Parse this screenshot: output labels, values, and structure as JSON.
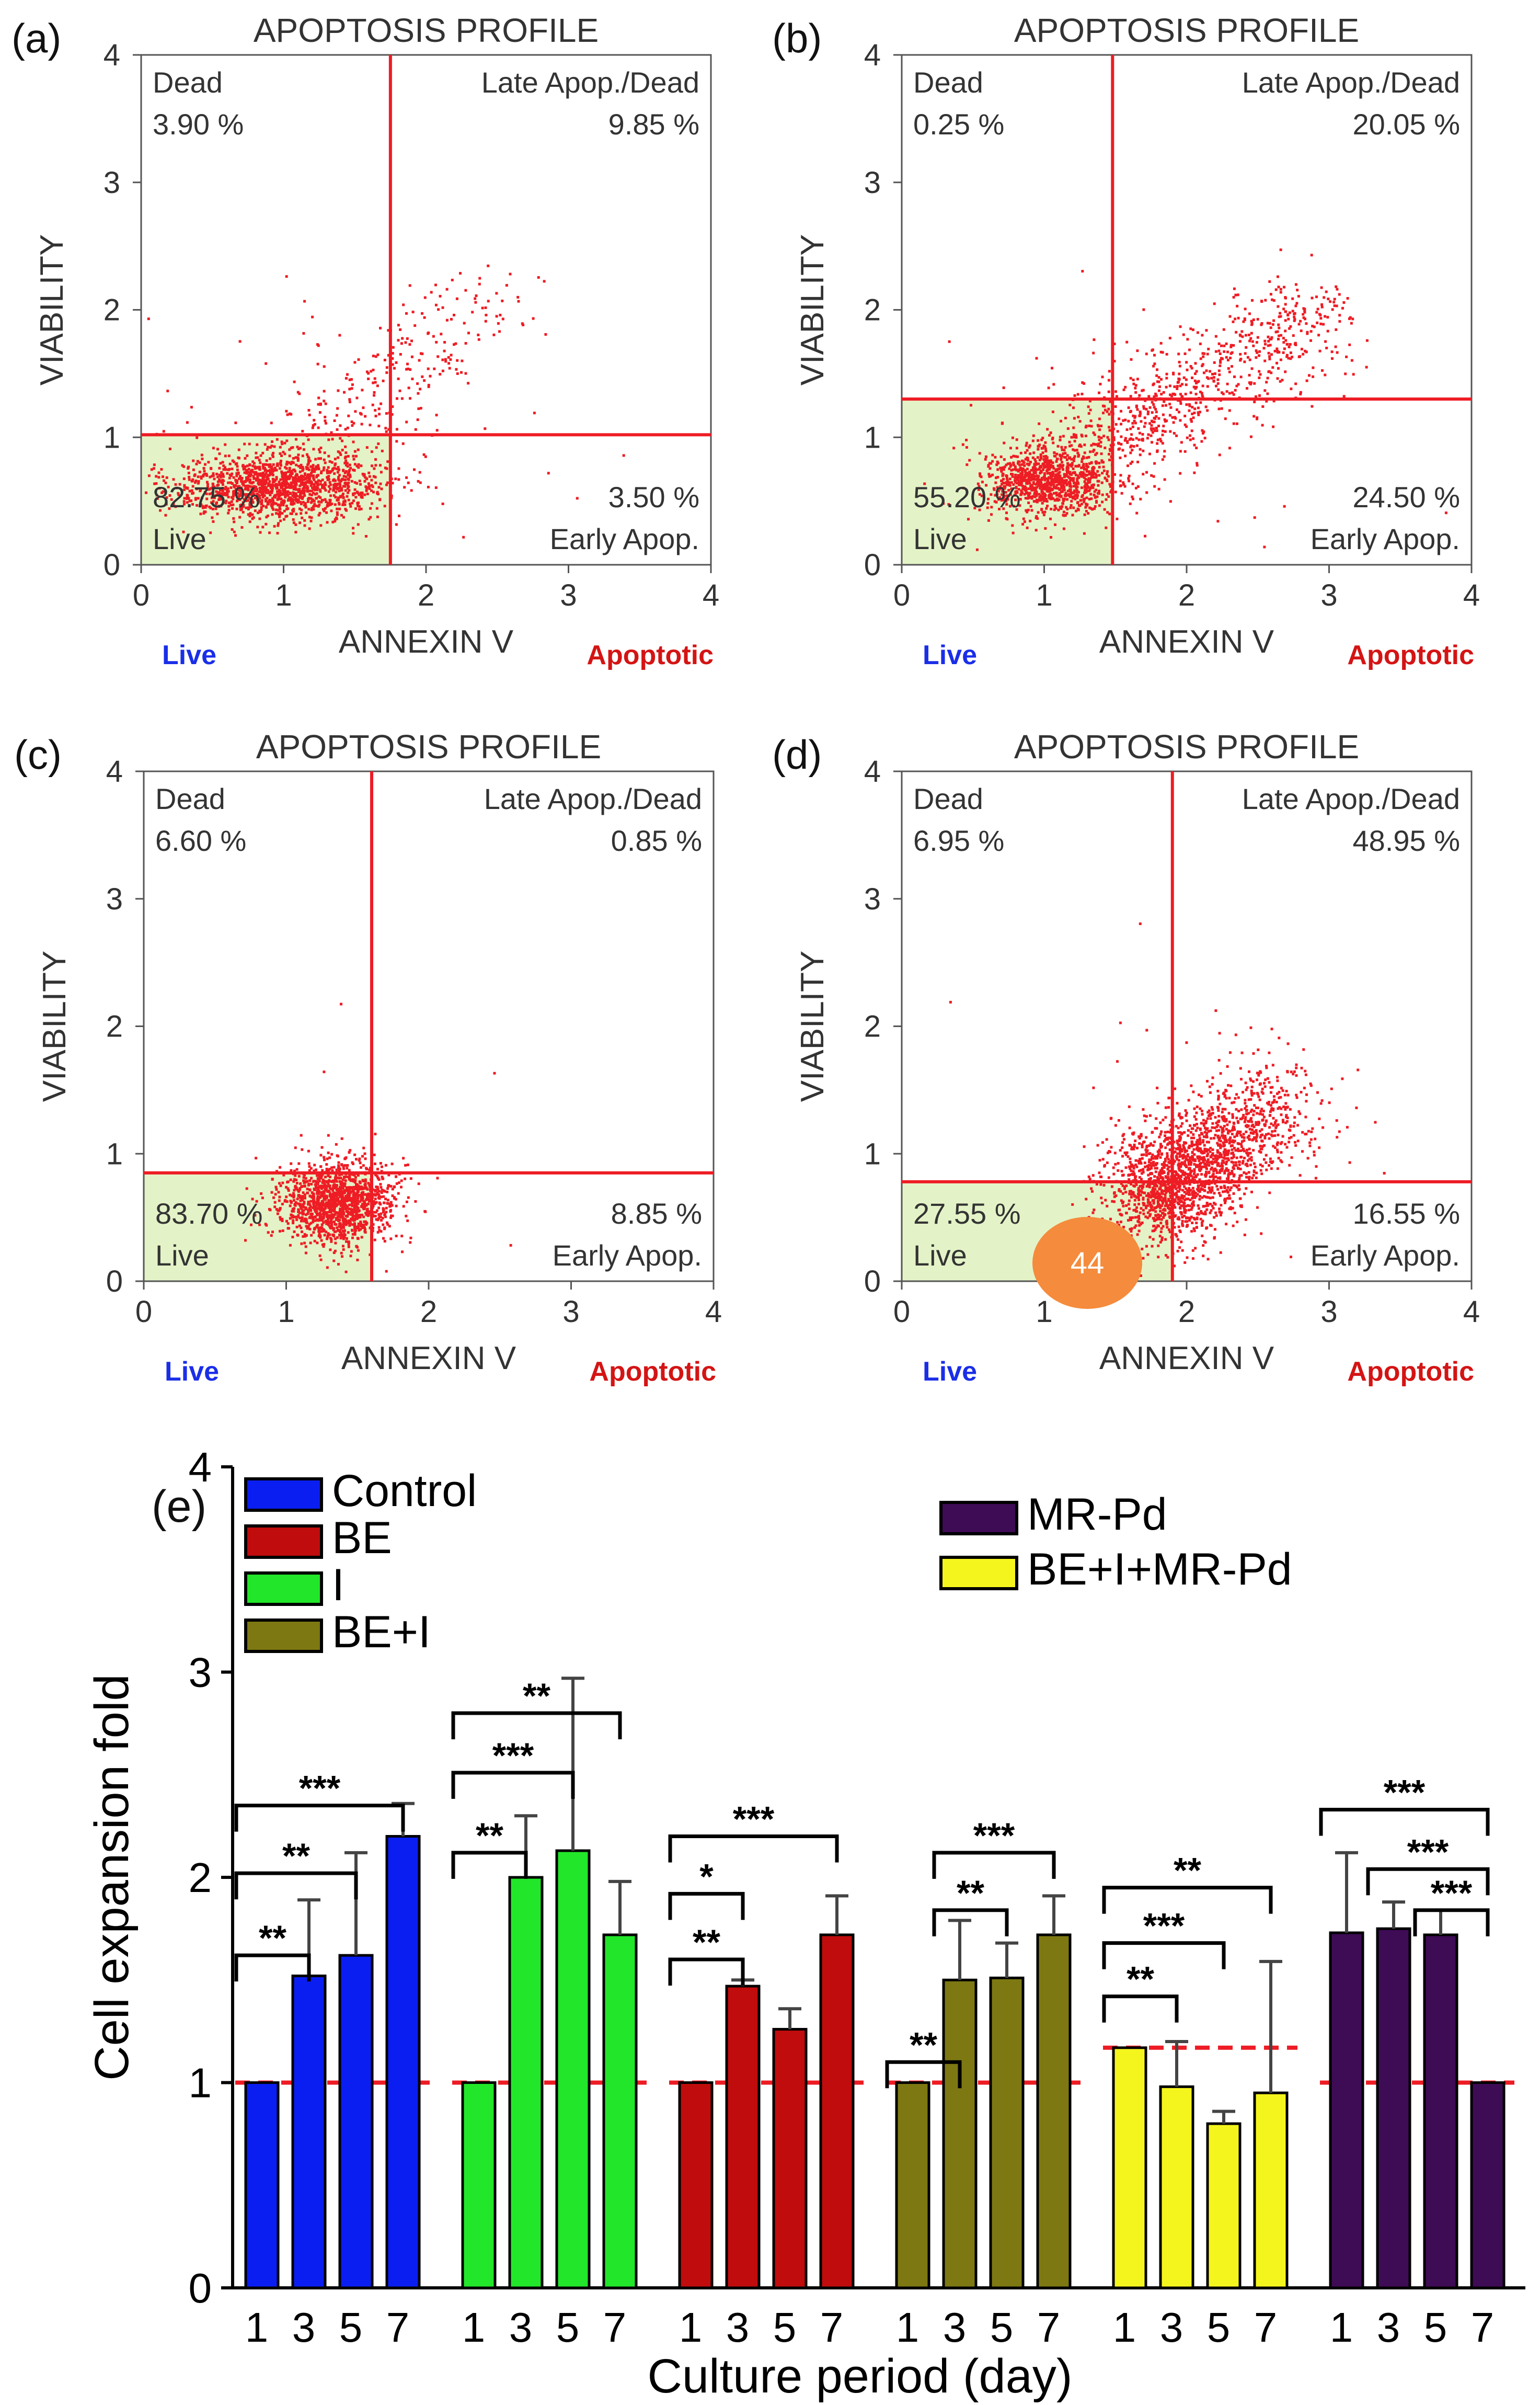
{
  "chart_data": [
    {
      "type": "scatter",
      "panel_label": "(a)",
      "title": "APOPTOSIS PROFILE",
      "xlabel": "ANNEXIN V",
      "ylabel": "VIABILITY",
      "xlim": [
        0,
        4
      ],
      "ylim": [
        0,
        4
      ],
      "xticks": [
        "0",
        "1",
        "2",
        "3",
        "4"
      ],
      "yticks": [
        "0",
        "1",
        "2",
        "3",
        "4"
      ],
      "gate": {
        "x": 1.75,
        "y": 1.02
      },
      "cluster": {
        "cx": 0.95,
        "cy": 0.62,
        "sx": 0.36,
        "sy": 0.13,
        "n": 1400,
        "tail_n": 320,
        "tail_to": [
          2.4,
          2.1
        ],
        "scatter_n": 60
      },
      "quadrants": {
        "dead": {
          "label": "Dead",
          "value": "3.90 %"
        },
        "late": {
          "label": "Late Apop./Dead",
          "value": "9.85 %"
        },
        "live": {
          "label": "Live",
          "value": "82.75 %"
        },
        "early": {
          "label": "Early Apop.",
          "value": "3.50 %"
        }
      },
      "below_left": "Live",
      "below_right": "Apoptotic"
    },
    {
      "type": "scatter",
      "panel_label": "(b)",
      "title": "APOPTOSIS PROFILE",
      "xlabel": "ANNEXIN V",
      "ylabel": "VIABILITY",
      "xlim": [
        0,
        4
      ],
      "ylim": [
        0,
        4
      ],
      "xticks": [
        "0",
        "1",
        "2",
        "3",
        "4"
      ],
      "yticks": [
        "0",
        "1",
        "2",
        "3",
        "4"
      ],
      "gate": {
        "x": 1.48,
        "y": 1.3
      },
      "cluster": {
        "cx": 1.0,
        "cy": 0.66,
        "sx": 0.22,
        "sy": 0.12,
        "n": 900,
        "tail_n": 900,
        "tail_to": [
          2.9,
          2.0
        ],
        "scatter_n": 60
      },
      "quadrants": {
        "dead": {
          "label": "Dead",
          "value": "0.25 %"
        },
        "late": {
          "label": "Late Apop./Dead",
          "value": "20.05 %"
        },
        "live": {
          "label": "Live",
          "value": "55.20 %"
        },
        "early": {
          "label": "Early Apop.",
          "value": "24.50 %"
        }
      },
      "below_left": "Live",
      "below_right": "Apoptotic"
    },
    {
      "type": "scatter",
      "panel_label": "(c)",
      "title": "APOPTOSIS PROFILE",
      "xlabel": "ANNEXIN V",
      "ylabel": "VIABILITY",
      "xlim": [
        0,
        4
      ],
      "ylim": [
        0,
        4
      ],
      "xticks": [
        "0",
        "1",
        "2",
        "3",
        "4"
      ],
      "yticks": [
        "0",
        "1",
        "2",
        "3",
        "4"
      ],
      "gate": {
        "x": 1.6,
        "y": 0.85
      },
      "cluster": {
        "cx": 1.35,
        "cy": 0.62,
        "sx": 0.2,
        "sy": 0.16,
        "n": 1400,
        "tail_n": 40,
        "tail_to": [
          1.6,
          0.9
        ],
        "scatter_n": 6
      },
      "quadrants": {
        "dead": {
          "label": "Dead",
          "value": "6.60 %"
        },
        "late": {
          "label": "Late Apop./Dead",
          "value": "0.85 %"
        },
        "live": {
          "label": "Live",
          "value": "83.70 %"
        },
        "early": {
          "label": "Early Apop.",
          "value": "8.85 %"
        }
      },
      "below_left": "Live",
      "below_right": "Apoptotic"
    },
    {
      "type": "scatter",
      "panel_label": "(d)",
      "title": "APOPTOSIS PROFILE",
      "xlabel": "ANNEXIN V",
      "ylabel": "VIABILITY",
      "xlim": [
        0,
        4
      ],
      "ylim": [
        0,
        4
      ],
      "xticks": [
        "0",
        "1",
        "2",
        "3",
        "4"
      ],
      "yticks": [
        "0",
        "1",
        "2",
        "3",
        "4"
      ],
      "gate": {
        "x": 1.9,
        "y": 0.78
      },
      "cluster": {
        "cx": 1.85,
        "cy": 0.75,
        "sx": 0.22,
        "sy": 0.22,
        "n": 900,
        "tail_n": 1100,
        "tail_to": [
          2.6,
          1.4
        ],
        "scatter_n": 40
      },
      "quadrants": {
        "dead": {
          "label": "Dead",
          "value": "6.95 %"
        },
        "late": {
          "label": "Late Apop./Dead",
          "value": "48.95 %"
        },
        "live": {
          "label": "Live",
          "value": "27.55 %"
        },
        "early": {
          "label": "Early Apop.",
          "value": "16.55 %"
        }
      },
      "below_left": "Live",
      "below_right": "Apoptotic",
      "badge": "44"
    },
    {
      "type": "bar",
      "panel_label": "(e)",
      "xlabel": "Culture period (day)",
      "ylabel": "Cell expansion fold",
      "ylim": [
        0,
        4
      ],
      "yticks": [
        "0",
        "1",
        "2",
        "3",
        "4"
      ],
      "days": [
        "1",
        "3",
        "5",
        "7"
      ],
      "series": [
        {
          "name": "Control",
          "color": "#0a1ef2",
          "values": [
            1.0,
            1.52,
            1.62,
            2.2
          ],
          "errors": [
            0.0,
            0.37,
            0.5,
            0.16
          ],
          "ref": 1.0
        },
        {
          "name": "I",
          "color": "#22e62a",
          "values": [
            1.0,
            2.0,
            2.13,
            1.72
          ],
          "errors": [
            0.0,
            0.3,
            0.84,
            0.26
          ],
          "ref": 1.0
        },
        {
          "name": "BE",
          "color": "#c00c0c",
          "values": [
            1.0,
            1.47,
            1.26,
            1.72
          ],
          "errors": [
            0.0,
            0.03,
            0.1,
            0.19
          ],
          "ref": 1.0
        },
        {
          "name": "BE+I",
          "color": "#7d7812",
          "values": [
            1.0,
            1.5,
            1.51,
            1.72
          ],
          "errors": [
            0.0,
            0.29,
            0.17,
            0.19
          ],
          "ref": 1.0
        },
        {
          "name": "BE+I+MR-Pd",
          "color": "#f5f51e",
          "values": [
            1.17,
            0.98,
            0.8,
            0.95
          ],
          "errors": [
            0.0,
            0.22,
            0.06,
            0.64
          ],
          "ref": 1.17
        },
        {
          "name": "MR-Pd",
          "color": "#3e0b55",
          "values": [
            1.73,
            1.75,
            1.72,
            1.0
          ],
          "errors": [
            0.39,
            0.13,
            0.12,
            0.0
          ],
          "ref": 1.0
        }
      ],
      "legend": [
        "Control",
        "BE",
        "I",
        "BE+I",
        "MR-Pd",
        "BE+I+MR-Pd"
      ],
      "significance": [
        {
          "group": 0,
          "from": 0,
          "to": 1,
          "label": "**",
          "level": 1.62
        },
        {
          "group": 0,
          "from": 0,
          "to": 2,
          "label": "**",
          "level": 2.02
        },
        {
          "group": 0,
          "from": 0,
          "to": 3,
          "label": "***",
          "level": 2.35
        },
        {
          "group": 1,
          "from": 0,
          "to": 1,
          "label": "**",
          "level": 2.12
        },
        {
          "group": 1,
          "from": 0,
          "to": 2,
          "label": "***",
          "level": 2.51
        },
        {
          "group": 1,
          "from": 0,
          "to": 3,
          "label": "**",
          "level": 2.8
        },
        {
          "group": 2,
          "from": 0,
          "to": 1,
          "label": "**",
          "level": 1.6
        },
        {
          "group": 2,
          "from": 0,
          "to": 1,
          "label": "*",
          "level": 1.92
        },
        {
          "group": 2,
          "from": 0,
          "to": 3,
          "label": "***",
          "level": 2.2
        },
        {
          "group": 3,
          "from": 0,
          "to": 1,
          "label": "**",
          "level": 1.1
        },
        {
          "group": 3,
          "from": 1,
          "to": 2,
          "label": "**",
          "level": 1.84
        },
        {
          "group": 3,
          "from": 1,
          "to": 3,
          "label": "***",
          "level": 2.12
        },
        {
          "group": 4,
          "from": 0,
          "to": 1,
          "label": "**",
          "level": 1.42
        },
        {
          "group": 4,
          "from": 0,
          "to": 2,
          "label": "***",
          "level": 1.68
        },
        {
          "group": 4,
          "from": 0,
          "to": 3,
          "label": "**",
          "level": 1.95
        },
        {
          "group": 5,
          "from": 0,
          "to": 3,
          "label": "***",
          "level": 2.33
        },
        {
          "group": 5,
          "from": 1,
          "to": 3,
          "label": "***",
          "level": 2.04
        },
        {
          "group": 5,
          "from": 2,
          "to": 3,
          "label": "***",
          "level": 1.84
        }
      ]
    }
  ],
  "colors": {
    "gate": "#ee1c24",
    "dots": "#ee1c24",
    "live_fill": "#e4f3c7",
    "live_text": "#1a2ee8",
    "apoptotic_text": "#d41414",
    "ref_line": "#ee1c24",
    "badge": "#f58b3c"
  }
}
